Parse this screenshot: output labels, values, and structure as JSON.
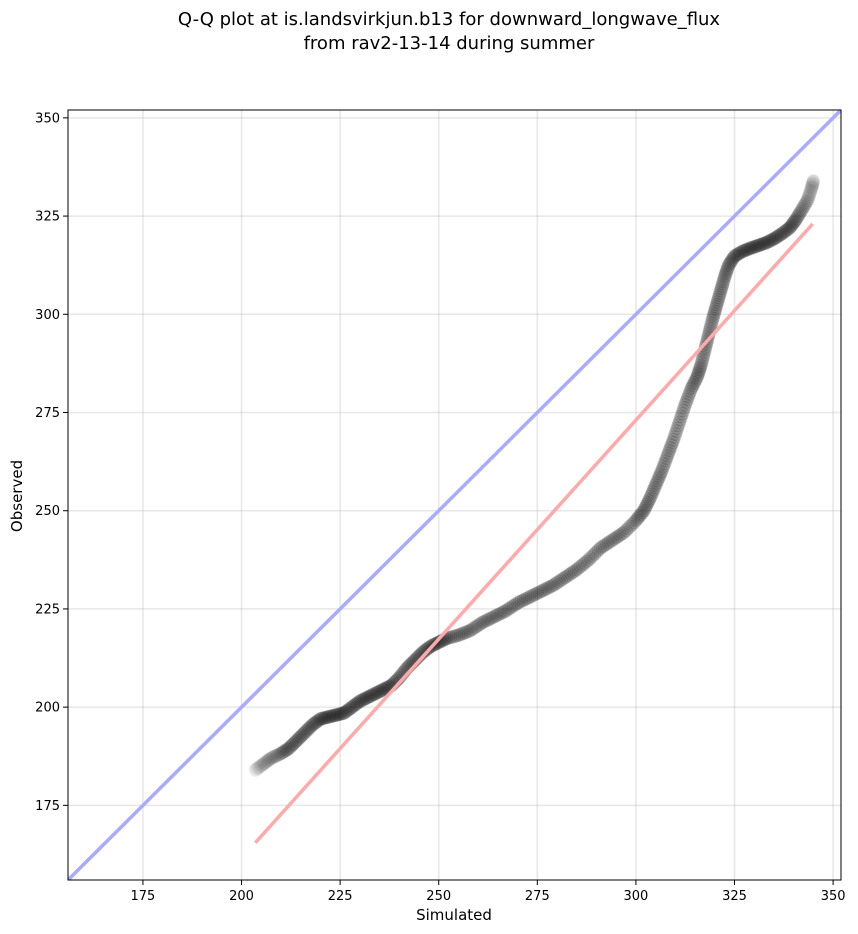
{
  "chart_data": {
    "type": "scatter",
    "title_lines": [
      "Q-Q plot at is.landsvirkjun.b13 for downward_longwave_flux",
      "from rav2-13-14 during summer"
    ],
    "xlabel": "Simulated",
    "ylabel": "Observed",
    "xlim": [
      156,
      352
    ],
    "ylim": [
      156,
      352
    ],
    "x_ticks": [
      175,
      200,
      225,
      250,
      275,
      300,
      325,
      350
    ],
    "y_ticks": [
      175,
      200,
      225,
      250,
      275,
      300,
      325,
      350
    ],
    "grid": true,
    "reference_line": {
      "name": "1:1 line",
      "color": "#aaaaff",
      "from": [
        156,
        156
      ],
      "to": [
        352,
        352
      ]
    },
    "fit_line": {
      "name": "linear fit",
      "color": "#ffaaaa",
      "from": [
        203.5,
        165.5
      ],
      "to": [
        344.8,
        323
      ]
    },
    "marker_color": "#000000",
    "quantile_curve": [
      [
        203.5,
        184
      ],
      [
        205.5,
        185.5
      ],
      [
        207.5,
        187
      ],
      [
        210,
        188.2
      ],
      [
        212,
        189.5
      ],
      [
        214,
        191.5
      ],
      [
        216,
        193.5
      ],
      [
        218,
        195.5
      ],
      [
        220,
        197
      ],
      [
        222,
        197.5
      ],
      [
        224,
        198
      ],
      [
        226,
        198.5
      ],
      [
        228,
        200
      ],
      [
        230,
        201.5
      ],
      [
        232,
        202.5
      ],
      [
        234,
        203.5
      ],
      [
        236,
        204.5
      ],
      [
        238,
        205.5
      ],
      [
        240,
        207.5
      ],
      [
        242,
        210
      ],
      [
        244,
        212
      ],
      [
        246,
        214
      ],
      [
        248,
        215.5
      ],
      [
        250,
        216.5
      ],
      [
        252,
        217.5
      ],
      [
        255,
        218.3
      ],
      [
        258,
        219.5
      ],
      [
        261,
        221.5
      ],
      [
        264,
        223
      ],
      [
        267,
        224.5
      ],
      [
        270,
        226.5
      ],
      [
        273,
        228
      ],
      [
        276,
        229.5
      ],
      [
        279,
        231
      ],
      [
        282,
        233
      ],
      [
        285,
        235
      ],
      [
        288,
        237.5
      ],
      [
        291,
        240.5
      ],
      [
        294,
        242.5
      ],
      [
        297,
        244.5
      ],
      [
        300,
        247.5
      ],
      [
        302,
        250
      ],
      [
        303.5,
        253
      ],
      [
        305,
        256.5
      ],
      [
        306.5,
        260
      ],
      [
        308,
        264
      ],
      [
        309.5,
        268
      ],
      [
        311,
        272.5
      ],
      [
        312.5,
        277
      ],
      [
        314,
        281
      ],
      [
        315.5,
        284
      ],
      [
        316.5,
        287
      ],
      [
        317.5,
        291
      ],
      [
        318.5,
        295
      ],
      [
        319.5,
        299
      ],
      [
        320.5,
        302.5
      ],
      [
        321.5,
        306
      ],
      [
        322.5,
        309.5
      ],
      [
        323.5,
        312.5
      ],
      [
        325,
        314.8
      ],
      [
        327,
        316
      ],
      [
        329,
        316.8
      ],
      [
        331,
        317.5
      ],
      [
        333,
        318.2
      ],
      [
        335,
        319.2
      ],
      [
        337,
        320.5
      ],
      [
        339,
        322
      ],
      [
        340.5,
        324
      ],
      [
        342,
        326.5
      ],
      [
        343.5,
        329
      ],
      [
        344.5,
        332
      ],
      [
        345,
        334
      ]
    ]
  }
}
